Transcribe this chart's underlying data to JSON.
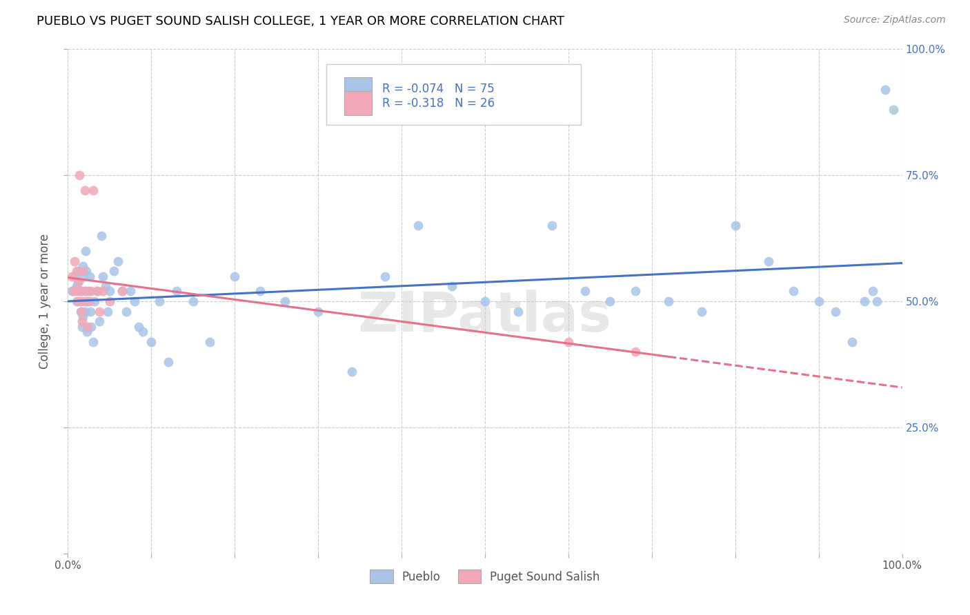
{
  "title": "PUEBLO VS PUGET SOUND SALISH COLLEGE, 1 YEAR OR MORE CORRELATION CHART",
  "source": "Source: ZipAtlas.com",
  "ylabel": "College, 1 year or more",
  "xlim": [
    0,
    1
  ],
  "ylim": [
    0,
    1
  ],
  "ytick_labels_right": [
    "100.0%",
    "75.0%",
    "50.0%",
    "25.0%"
  ],
  "ytick_positions_right": [
    1.0,
    0.75,
    0.5,
    0.25
  ],
  "legend_label1": "Pueblo",
  "legend_label2": "Puget Sound Salish",
  "R1": -0.074,
  "N1": 75,
  "R2": -0.318,
  "N2": 26,
  "color_blue": "#A8C4E8",
  "color_pink": "#F2A8B8",
  "color_blue_text": "#4472C4",
  "trendline_blue": "#4472C4",
  "trendline_pink": "#E8708A",
  "pueblo_x": [
    0.005,
    0.008,
    0.01,
    0.01,
    0.012,
    0.013,
    0.014,
    0.015,
    0.015,
    0.016,
    0.017,
    0.018,
    0.018,
    0.019,
    0.02,
    0.02,
    0.021,
    0.022,
    0.022,
    0.023,
    0.024,
    0.025,
    0.026,
    0.027,
    0.028,
    0.03,
    0.032,
    0.035,
    0.038,
    0.04,
    0.042,
    0.045,
    0.048,
    0.05,
    0.055,
    0.06,
    0.065,
    0.07,
    0.075,
    0.08,
    0.085,
    0.09,
    0.1,
    0.11,
    0.12,
    0.13,
    0.15,
    0.17,
    0.2,
    0.23,
    0.26,
    0.3,
    0.34,
    0.38,
    0.42,
    0.46,
    0.5,
    0.54,
    0.58,
    0.62,
    0.65,
    0.68,
    0.72,
    0.76,
    0.8,
    0.84,
    0.87,
    0.9,
    0.92,
    0.94,
    0.955,
    0.965,
    0.97,
    0.98,
    0.99
  ],
  "pueblo_y": [
    0.52,
    0.55,
    0.5,
    0.53,
    0.54,
    0.56,
    0.52,
    0.5,
    0.48,
    0.52,
    0.45,
    0.47,
    0.57,
    0.55,
    0.52,
    0.48,
    0.6,
    0.56,
    0.5,
    0.44,
    0.5,
    0.52,
    0.55,
    0.48,
    0.45,
    0.42,
    0.5,
    0.52,
    0.46,
    0.63,
    0.55,
    0.53,
    0.48,
    0.52,
    0.56,
    0.58,
    0.52,
    0.48,
    0.52,
    0.5,
    0.45,
    0.44,
    0.42,
    0.5,
    0.38,
    0.52,
    0.5,
    0.42,
    0.55,
    0.52,
    0.5,
    0.48,
    0.36,
    0.55,
    0.65,
    0.53,
    0.5,
    0.48,
    0.65,
    0.52,
    0.5,
    0.52,
    0.5,
    0.48,
    0.65,
    0.58,
    0.52,
    0.5,
    0.48,
    0.42,
    0.5,
    0.52,
    0.5,
    0.92,
    0.88
  ],
  "puget_x": [
    0.005,
    0.007,
    0.008,
    0.01,
    0.01,
    0.012,
    0.013,
    0.014,
    0.015,
    0.016,
    0.017,
    0.018,
    0.019,
    0.02,
    0.022,
    0.024,
    0.026,
    0.028,
    0.03,
    0.035,
    0.038,
    0.042,
    0.05,
    0.065,
    0.6,
    0.68
  ],
  "puget_y": [
    0.55,
    0.52,
    0.58,
    0.52,
    0.56,
    0.5,
    0.54,
    0.75,
    0.52,
    0.48,
    0.46,
    0.56,
    0.5,
    0.72,
    0.52,
    0.45,
    0.5,
    0.52,
    0.72,
    0.52,
    0.48,
    0.52,
    0.5,
    0.52,
    0.42,
    0.4
  ]
}
